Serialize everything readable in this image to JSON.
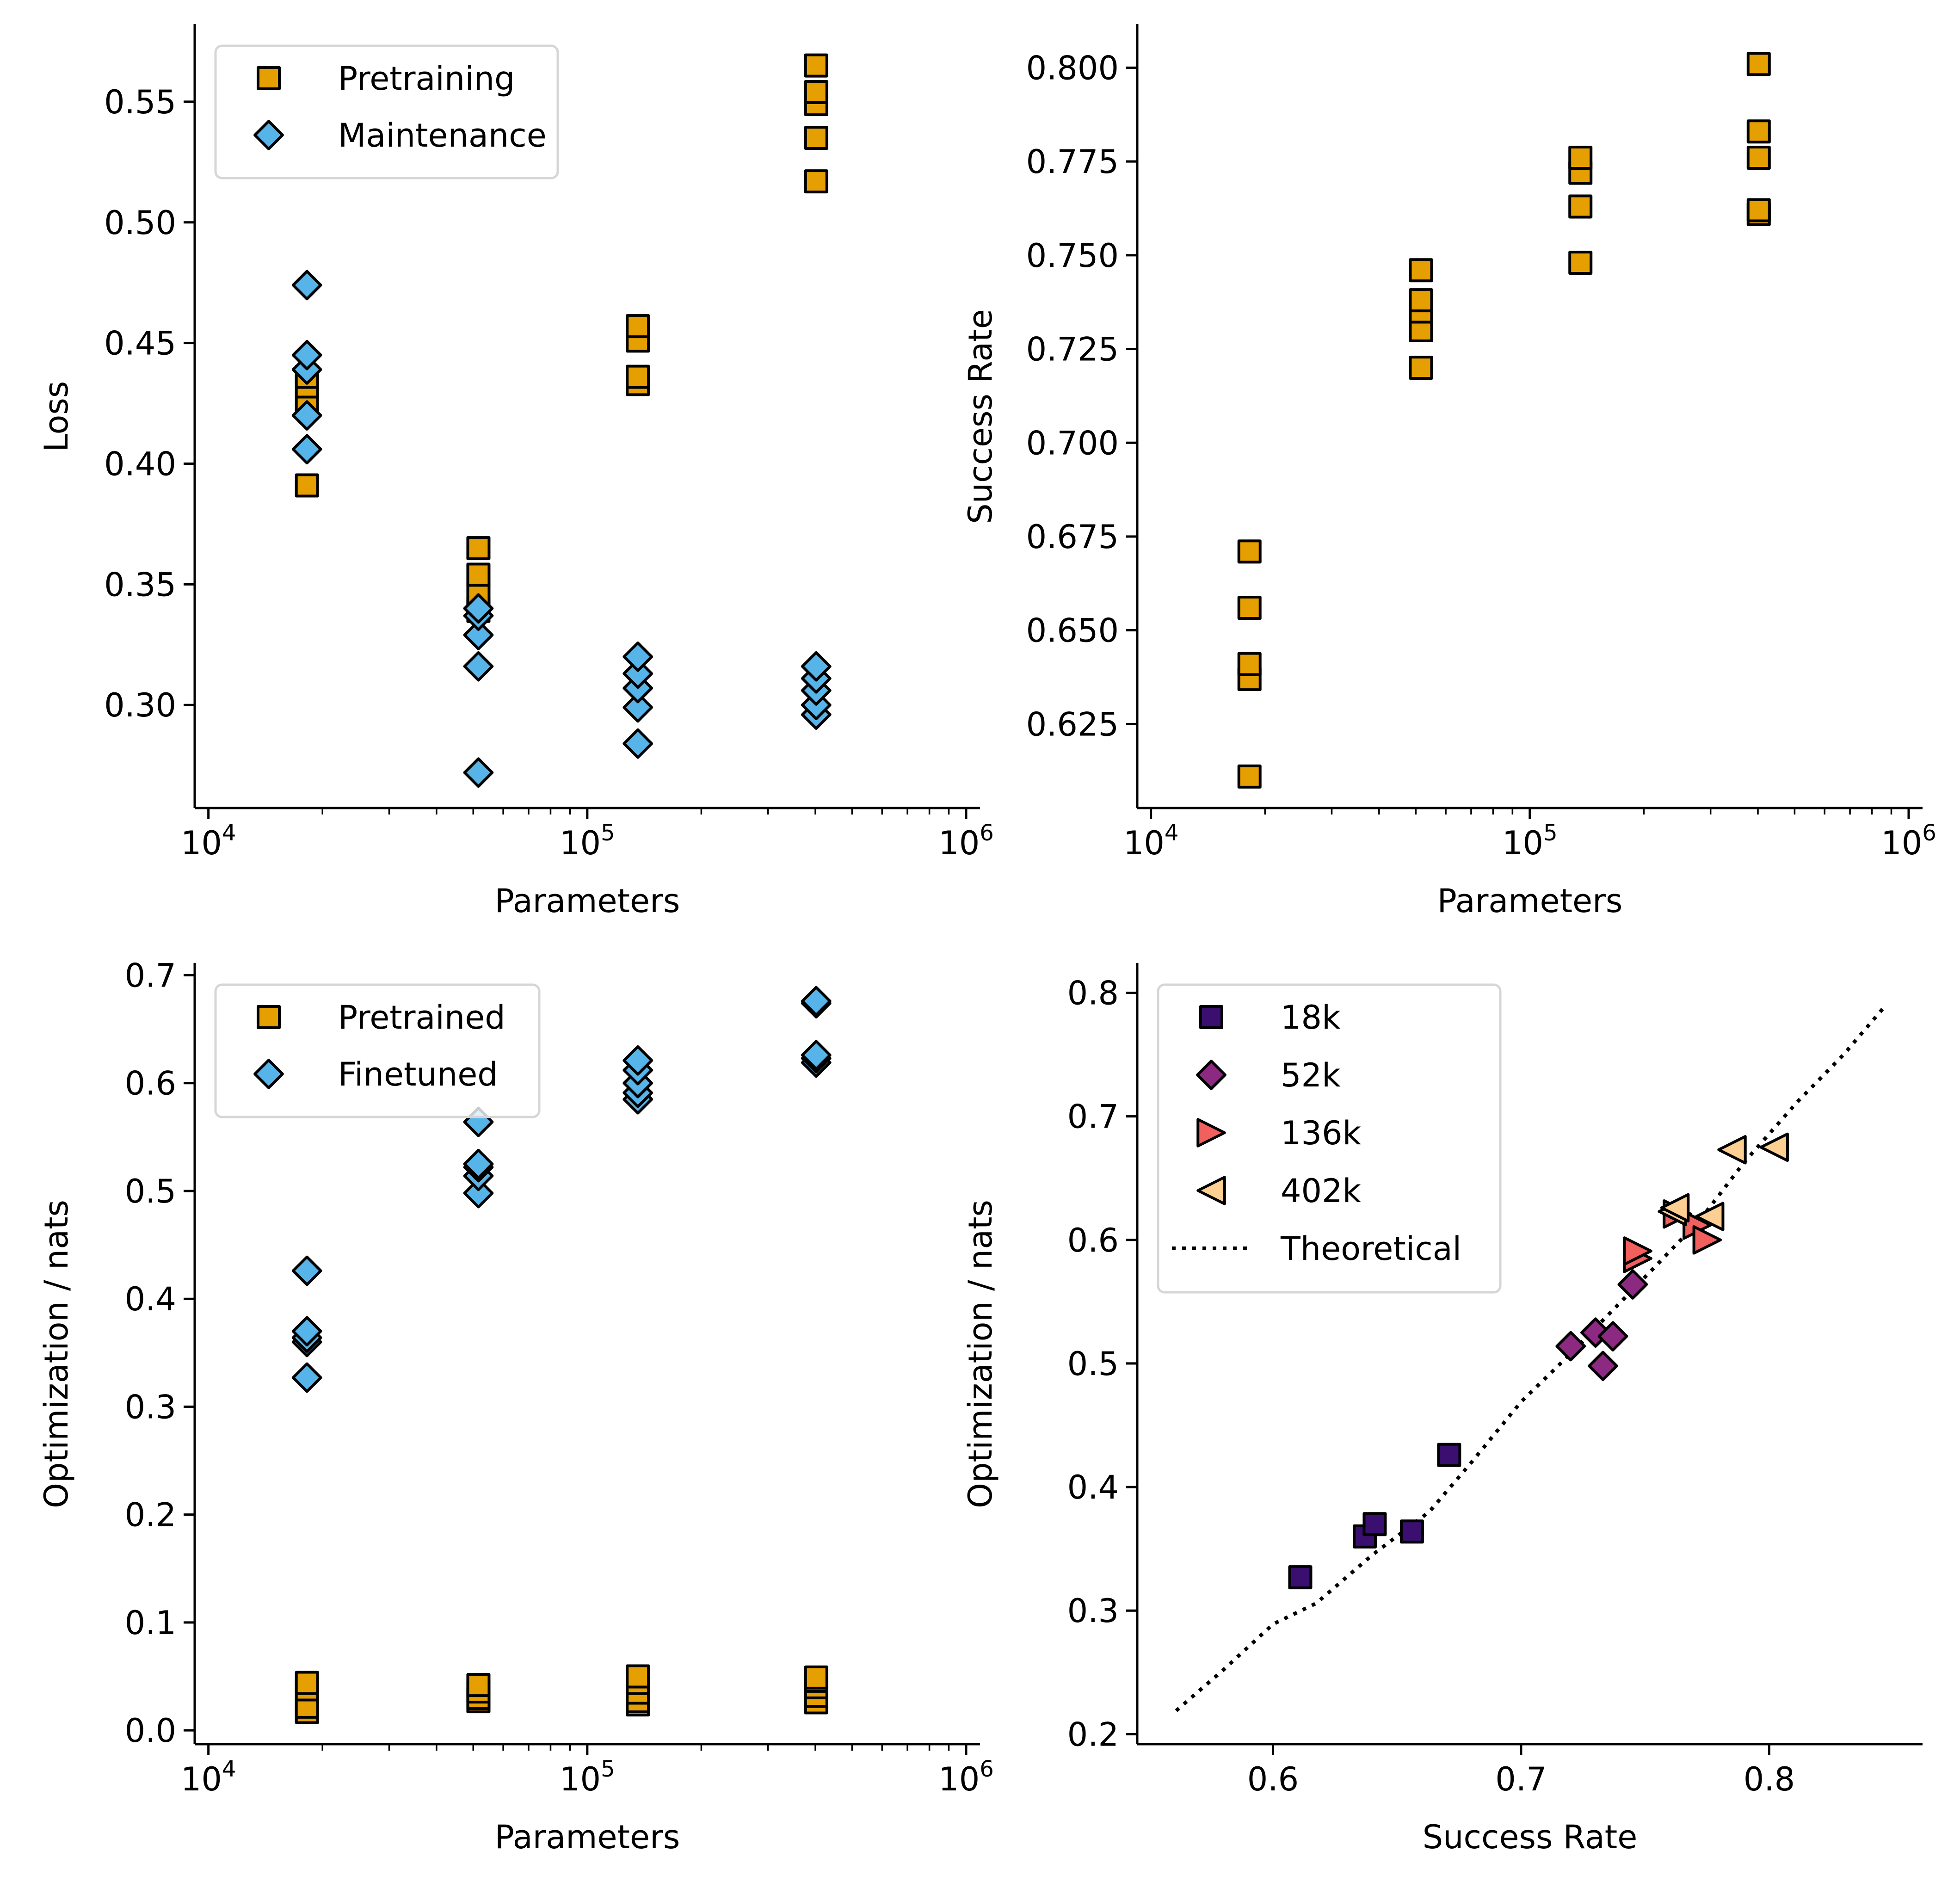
{
  "figure": {
    "panels_layout": "2x2 grid"
  },
  "chart_data": [
    {
      "id": "loss",
      "type": "scatter",
      "title": "",
      "xlabel": "Parameters",
      "ylabel": "Loss",
      "xscale": "log",
      "xlim": [
        9200,
        1088000
      ],
      "ylim": [
        0.2573,
        0.5818
      ],
      "xticks": [
        {
          "value": 10000,
          "base": "10",
          "exp": "4"
        },
        {
          "value": 100000,
          "base": "10",
          "exp": "5"
        },
        {
          "value": 1000000,
          "base": "10",
          "exp": "6"
        }
      ],
      "yticks": [
        {
          "value": 0.3,
          "label": "0.30"
        },
        {
          "value": 0.35,
          "label": "0.35"
        },
        {
          "value": 0.4,
          "label": "0.40"
        },
        {
          "value": 0.45,
          "label": "0.45"
        },
        {
          "value": 0.5,
          "label": "0.50"
        },
        {
          "value": 0.55,
          "label": "0.55"
        }
      ],
      "grid": false,
      "legend": {
        "placement": "top-left"
      },
      "series": [
        {
          "name": "Pretraining",
          "marker": "square",
          "color": "#E69F00",
          "points": [
            [
              18200,
              0.391
            ],
            [
              18200,
              0.425
            ],
            [
              18200,
              0.432
            ],
            [
              18200,
              0.436
            ],
            [
              51600,
              0.339
            ],
            [
              51600,
              0.34
            ],
            [
              51600,
              0.346
            ],
            [
              51600,
              0.354
            ],
            [
              51600,
              0.365
            ],
            [
              136000,
              0.433
            ],
            [
              136000,
              0.436
            ],
            [
              136000,
              0.451
            ],
            [
              136000,
              0.457
            ],
            [
              402000,
              0.517
            ],
            [
              402000,
              0.535
            ],
            [
              402000,
              0.549
            ],
            [
              402000,
              0.554
            ],
            [
              402000,
              0.565
            ]
          ]
        },
        {
          "name": "Maintenance",
          "marker": "diamond",
          "color": "#56B4E9",
          "points": [
            [
              18200,
              0.406
            ],
            [
              18200,
              0.42
            ],
            [
              18200,
              0.439
            ],
            [
              18200,
              0.445
            ],
            [
              18200,
              0.474
            ],
            [
              51600,
              0.272
            ],
            [
              51600,
              0.316
            ],
            [
              51600,
              0.329
            ],
            [
              51600,
              0.337
            ],
            [
              51600,
              0.34
            ],
            [
              136000,
              0.284
            ],
            [
              136000,
              0.299
            ],
            [
              136000,
              0.307
            ],
            [
              136000,
              0.313
            ],
            [
              136000,
              0.32
            ],
            [
              402000,
              0.296
            ],
            [
              402000,
              0.3
            ],
            [
              402000,
              0.306
            ],
            [
              402000,
              0.311
            ],
            [
              402000,
              0.316
            ]
          ]
        }
      ]
    },
    {
      "id": "success",
      "type": "scatter",
      "title": "",
      "xlabel": "Parameters",
      "ylabel": "Success Rate",
      "xscale": "log",
      "xlim": [
        9200,
        1088000
      ],
      "ylim": [
        0.6026,
        0.8114
      ],
      "xticks": [
        {
          "value": 10000,
          "base": "10",
          "exp": "4"
        },
        {
          "value": 100000,
          "base": "10",
          "exp": "5"
        },
        {
          "value": 1000000,
          "base": "10",
          "exp": "6"
        }
      ],
      "yticks": [
        {
          "value": 0.625,
          "label": "0.625"
        },
        {
          "value": 0.65,
          "label": "0.650"
        },
        {
          "value": 0.675,
          "label": "0.675"
        },
        {
          "value": 0.7,
          "label": "0.700"
        },
        {
          "value": 0.725,
          "label": "0.725"
        },
        {
          "value": 0.75,
          "label": "0.750"
        },
        {
          "value": 0.775,
          "label": "0.775"
        },
        {
          "value": 0.8,
          "label": "0.800"
        }
      ],
      "grid": false,
      "legend": null,
      "series": [
        {
          "name": "Success Rate",
          "marker": "square",
          "color": "#E69F00",
          "points": [
            [
              18200,
              0.611
            ],
            [
              18200,
              0.637
            ],
            [
              18200,
              0.641
            ],
            [
              18200,
              0.656
            ],
            [
              18200,
              0.671
            ],
            [
              51600,
              0.72
            ],
            [
              51600,
              0.73
            ],
            [
              51600,
              0.735
            ],
            [
              51600,
              0.738
            ],
            [
              51600,
              0.746
            ],
            [
              136000,
              0.748
            ],
            [
              136000,
              0.763
            ],
            [
              136000,
              0.772
            ],
            [
              136000,
              0.776
            ],
            [
              402000,
              0.761
            ],
            [
              402000,
              0.762
            ],
            [
              402000,
              0.776
            ],
            [
              402000,
              0.783
            ],
            [
              402000,
              0.801
            ]
          ]
        }
      ]
    },
    {
      "id": "optimization-vs-params",
      "type": "scatter",
      "title": "",
      "xlabel": "Parameters",
      "ylabel": "Optimization / nats",
      "xscale": "log",
      "xlim": [
        9200,
        1088000
      ],
      "ylim": [
        -0.0128,
        0.7105
      ],
      "xticks": [
        {
          "value": 10000,
          "base": "10",
          "exp": "4"
        },
        {
          "value": 100000,
          "base": "10",
          "exp": "5"
        },
        {
          "value": 1000000,
          "base": "10",
          "exp": "6"
        }
      ],
      "yticks": [
        {
          "value": 0.0,
          "label": "0.0"
        },
        {
          "value": 0.1,
          "label": "0.1"
        },
        {
          "value": 0.2,
          "label": "0.2"
        },
        {
          "value": 0.3,
          "label": "0.3"
        },
        {
          "value": 0.4,
          "label": "0.4"
        },
        {
          "value": 0.5,
          "label": "0.5"
        },
        {
          "value": 0.6,
          "label": "0.6"
        },
        {
          "value": 0.7,
          "label": "0.7"
        }
      ],
      "grid": false,
      "legend": {
        "placement": "top-left"
      },
      "series": [
        {
          "name": "Pretrained",
          "marker": "square",
          "color": "#E69F00",
          "points": [
            [
              18200,
              0.017
            ],
            [
              18200,
              0.022
            ],
            [
              18200,
              0.038
            ],
            [
              18200,
              0.044
            ],
            [
              51600,
              0.027
            ],
            [
              51600,
              0.03
            ],
            [
              51600,
              0.036
            ],
            [
              51600,
              0.042
            ],
            [
              136000,
              0.024
            ],
            [
              136000,
              0.027
            ],
            [
              136000,
              0.035
            ],
            [
              136000,
              0.044
            ],
            [
              136000,
              0.05
            ],
            [
              402000,
              0.026
            ],
            [
              402000,
              0.032
            ],
            [
              402000,
              0.04
            ],
            [
              402000,
              0.046
            ],
            [
              402000,
              0.049
            ]
          ]
        },
        {
          "name": "Finetuned",
          "marker": "diamond",
          "color": "#56B4E9",
          "points": [
            [
              18200,
              0.327
            ],
            [
              18200,
              0.36
            ],
            [
              18200,
              0.364
            ],
            [
              18200,
              0.37
            ],
            [
              18200,
              0.426
            ],
            [
              51600,
              0.498
            ],
            [
              51600,
              0.514
            ],
            [
              51600,
              0.522
            ],
            [
              51600,
              0.525
            ],
            [
              51600,
              0.564
            ],
            [
              136000,
              0.585
            ],
            [
              136000,
              0.591
            ],
            [
              136000,
              0.6
            ],
            [
              136000,
              0.612
            ],
            [
              136000,
              0.621
            ],
            [
              402000,
              0.619
            ],
            [
              402000,
              0.623
            ],
            [
              402000,
              0.626
            ],
            [
              402000,
              0.674
            ],
            [
              402000,
              0.676
            ]
          ]
        }
      ]
    },
    {
      "id": "optimization-vs-success",
      "type": "scatter",
      "title": "",
      "xlabel": "Success Rate",
      "ylabel": "Optimization / nats",
      "xscale": "linear",
      "xlim": [
        0.5453,
        0.8618
      ],
      "ylim": [
        0.1919,
        0.8234
      ],
      "xticks": [
        {
          "value": 0.6,
          "label": "0.6"
        },
        {
          "value": 0.7,
          "label": "0.7"
        },
        {
          "value": 0.8,
          "label": "0.8"
        }
      ],
      "yticks": [
        {
          "value": 0.2,
          "label": "0.2"
        },
        {
          "value": 0.3,
          "label": "0.3"
        },
        {
          "value": 0.4,
          "label": "0.4"
        },
        {
          "value": 0.5,
          "label": "0.5"
        },
        {
          "value": 0.6,
          "label": "0.6"
        },
        {
          "value": 0.7,
          "label": "0.7"
        },
        {
          "value": 0.8,
          "label": "0.8"
        }
      ],
      "grid": false,
      "legend": {
        "placement": "top-left"
      },
      "series": [
        {
          "name": "18k",
          "marker": "square",
          "color": "#3B0F70",
          "points": [
            [
              0.611,
              0.327
            ],
            [
              0.637,
              0.36
            ],
            [
              0.641,
              0.37
            ],
            [
              0.656,
              0.364
            ],
            [
              0.671,
              0.426
            ]
          ]
        },
        {
          "name": "52k",
          "marker": "diamond",
          "color": "#8C2981",
          "points": [
            [
              0.72,
              0.514
            ],
            [
              0.73,
              0.525
            ],
            [
              0.733,
              0.498
            ],
            [
              0.737,
              0.522
            ],
            [
              0.745,
              0.564
            ]
          ]
        },
        {
          "name": "136k",
          "marker": "triangle-right",
          "color": "#F1605D",
          "points": [
            [
              0.747,
              0.585
            ],
            [
              0.747,
              0.591
            ],
            [
              0.763,
              0.621
            ],
            [
              0.771,
              0.612
            ],
            [
              0.775,
              0.6
            ]
          ]
        },
        {
          "name": "402k",
          "marker": "triangle-left",
          "color": "#FECF92",
          "points": [
            [
              0.761,
              0.623
            ],
            [
              0.762,
              0.626
            ],
            [
              0.776,
              0.619
            ],
            [
              0.785,
              0.673
            ],
            [
              0.802,
              0.675
            ]
          ]
        },
        {
          "name": "Theoretical",
          "marker": "dotted-line",
          "color": "#000000",
          "line": [
            [
              0.561,
              0.219
            ],
            [
              0.58,
              0.252
            ],
            [
              0.6,
              0.289
            ],
            [
              0.6175,
              0.306
            ],
            [
              0.64,
              0.345
            ],
            [
              0.663,
              0.38
            ],
            [
              0.68,
              0.42
            ],
            [
              0.7,
              0.469
            ],
            [
              0.72,
              0.508
            ],
            [
              0.733,
              0.535
            ],
            [
              0.75,
              0.57
            ],
            [
              0.772,
              0.616
            ],
            [
              0.79,
              0.663
            ],
            [
              0.811,
              0.711
            ],
            [
              0.83,
              0.75
            ],
            [
              0.847,
              0.79
            ]
          ]
        }
      ]
    }
  ]
}
